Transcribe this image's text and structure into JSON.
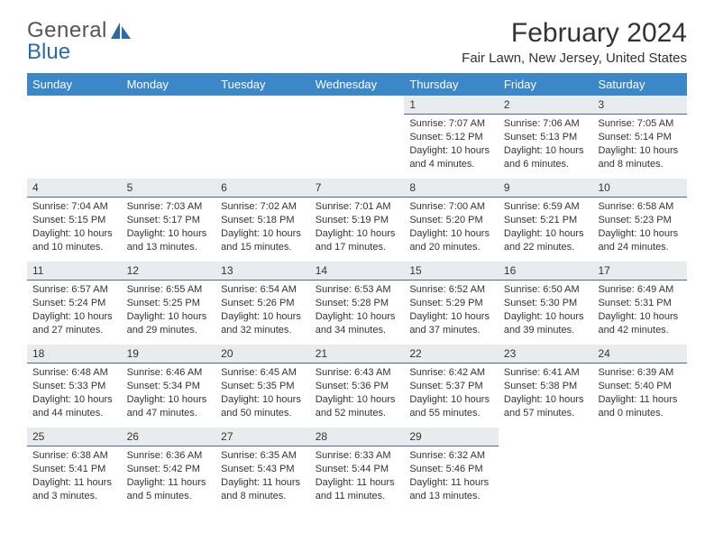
{
  "brand": {
    "word1": "General",
    "word2": "Blue"
  },
  "title": "February 2024",
  "location": "Fair Lawn, New Jersey, United States",
  "colors": {
    "header_bg": "#3b87c8",
    "header_text": "#ffffff",
    "daynum_bg": "#e9ecef",
    "daynum_border": "#4a6a8a",
    "brand_gray": "#555555",
    "brand_blue": "#2b6aa8"
  },
  "day_names": [
    "Sunday",
    "Monday",
    "Tuesday",
    "Wednesday",
    "Thursday",
    "Friday",
    "Saturday"
  ],
  "weeks": [
    [
      null,
      null,
      null,
      null,
      {
        "n": "1",
        "sr": "Sunrise: 7:07 AM",
        "ss": "Sunset: 5:12 PM",
        "d1": "Daylight: 10 hours",
        "d2": "and 4 minutes."
      },
      {
        "n": "2",
        "sr": "Sunrise: 7:06 AM",
        "ss": "Sunset: 5:13 PM",
        "d1": "Daylight: 10 hours",
        "d2": "and 6 minutes."
      },
      {
        "n": "3",
        "sr": "Sunrise: 7:05 AM",
        "ss": "Sunset: 5:14 PM",
        "d1": "Daylight: 10 hours",
        "d2": "and 8 minutes."
      }
    ],
    [
      {
        "n": "4",
        "sr": "Sunrise: 7:04 AM",
        "ss": "Sunset: 5:15 PM",
        "d1": "Daylight: 10 hours",
        "d2": "and 10 minutes."
      },
      {
        "n": "5",
        "sr": "Sunrise: 7:03 AM",
        "ss": "Sunset: 5:17 PM",
        "d1": "Daylight: 10 hours",
        "d2": "and 13 minutes."
      },
      {
        "n": "6",
        "sr": "Sunrise: 7:02 AM",
        "ss": "Sunset: 5:18 PM",
        "d1": "Daylight: 10 hours",
        "d2": "and 15 minutes."
      },
      {
        "n": "7",
        "sr": "Sunrise: 7:01 AM",
        "ss": "Sunset: 5:19 PM",
        "d1": "Daylight: 10 hours",
        "d2": "and 17 minutes."
      },
      {
        "n": "8",
        "sr": "Sunrise: 7:00 AM",
        "ss": "Sunset: 5:20 PM",
        "d1": "Daylight: 10 hours",
        "d2": "and 20 minutes."
      },
      {
        "n": "9",
        "sr": "Sunrise: 6:59 AM",
        "ss": "Sunset: 5:21 PM",
        "d1": "Daylight: 10 hours",
        "d2": "and 22 minutes."
      },
      {
        "n": "10",
        "sr": "Sunrise: 6:58 AM",
        "ss": "Sunset: 5:23 PM",
        "d1": "Daylight: 10 hours",
        "d2": "and 24 minutes."
      }
    ],
    [
      {
        "n": "11",
        "sr": "Sunrise: 6:57 AM",
        "ss": "Sunset: 5:24 PM",
        "d1": "Daylight: 10 hours",
        "d2": "and 27 minutes."
      },
      {
        "n": "12",
        "sr": "Sunrise: 6:55 AM",
        "ss": "Sunset: 5:25 PM",
        "d1": "Daylight: 10 hours",
        "d2": "and 29 minutes."
      },
      {
        "n": "13",
        "sr": "Sunrise: 6:54 AM",
        "ss": "Sunset: 5:26 PM",
        "d1": "Daylight: 10 hours",
        "d2": "and 32 minutes."
      },
      {
        "n": "14",
        "sr": "Sunrise: 6:53 AM",
        "ss": "Sunset: 5:28 PM",
        "d1": "Daylight: 10 hours",
        "d2": "and 34 minutes."
      },
      {
        "n": "15",
        "sr": "Sunrise: 6:52 AM",
        "ss": "Sunset: 5:29 PM",
        "d1": "Daylight: 10 hours",
        "d2": "and 37 minutes."
      },
      {
        "n": "16",
        "sr": "Sunrise: 6:50 AM",
        "ss": "Sunset: 5:30 PM",
        "d1": "Daylight: 10 hours",
        "d2": "and 39 minutes."
      },
      {
        "n": "17",
        "sr": "Sunrise: 6:49 AM",
        "ss": "Sunset: 5:31 PM",
        "d1": "Daylight: 10 hours",
        "d2": "and 42 minutes."
      }
    ],
    [
      {
        "n": "18",
        "sr": "Sunrise: 6:48 AM",
        "ss": "Sunset: 5:33 PM",
        "d1": "Daylight: 10 hours",
        "d2": "and 44 minutes."
      },
      {
        "n": "19",
        "sr": "Sunrise: 6:46 AM",
        "ss": "Sunset: 5:34 PM",
        "d1": "Daylight: 10 hours",
        "d2": "and 47 minutes."
      },
      {
        "n": "20",
        "sr": "Sunrise: 6:45 AM",
        "ss": "Sunset: 5:35 PM",
        "d1": "Daylight: 10 hours",
        "d2": "and 50 minutes."
      },
      {
        "n": "21",
        "sr": "Sunrise: 6:43 AM",
        "ss": "Sunset: 5:36 PM",
        "d1": "Daylight: 10 hours",
        "d2": "and 52 minutes."
      },
      {
        "n": "22",
        "sr": "Sunrise: 6:42 AM",
        "ss": "Sunset: 5:37 PM",
        "d1": "Daylight: 10 hours",
        "d2": "and 55 minutes."
      },
      {
        "n": "23",
        "sr": "Sunrise: 6:41 AM",
        "ss": "Sunset: 5:38 PM",
        "d1": "Daylight: 10 hours",
        "d2": "and 57 minutes."
      },
      {
        "n": "24",
        "sr": "Sunrise: 6:39 AM",
        "ss": "Sunset: 5:40 PM",
        "d1": "Daylight: 11 hours",
        "d2": "and 0 minutes."
      }
    ],
    [
      {
        "n": "25",
        "sr": "Sunrise: 6:38 AM",
        "ss": "Sunset: 5:41 PM",
        "d1": "Daylight: 11 hours",
        "d2": "and 3 minutes."
      },
      {
        "n": "26",
        "sr": "Sunrise: 6:36 AM",
        "ss": "Sunset: 5:42 PM",
        "d1": "Daylight: 11 hours",
        "d2": "and 5 minutes."
      },
      {
        "n": "27",
        "sr": "Sunrise: 6:35 AM",
        "ss": "Sunset: 5:43 PM",
        "d1": "Daylight: 11 hours",
        "d2": "and 8 minutes."
      },
      {
        "n": "28",
        "sr": "Sunrise: 6:33 AM",
        "ss": "Sunset: 5:44 PM",
        "d1": "Daylight: 11 hours",
        "d2": "and 11 minutes."
      },
      {
        "n": "29",
        "sr": "Sunrise: 6:32 AM",
        "ss": "Sunset: 5:46 PM",
        "d1": "Daylight: 11 hours",
        "d2": "and 13 minutes."
      },
      null,
      null
    ]
  ]
}
